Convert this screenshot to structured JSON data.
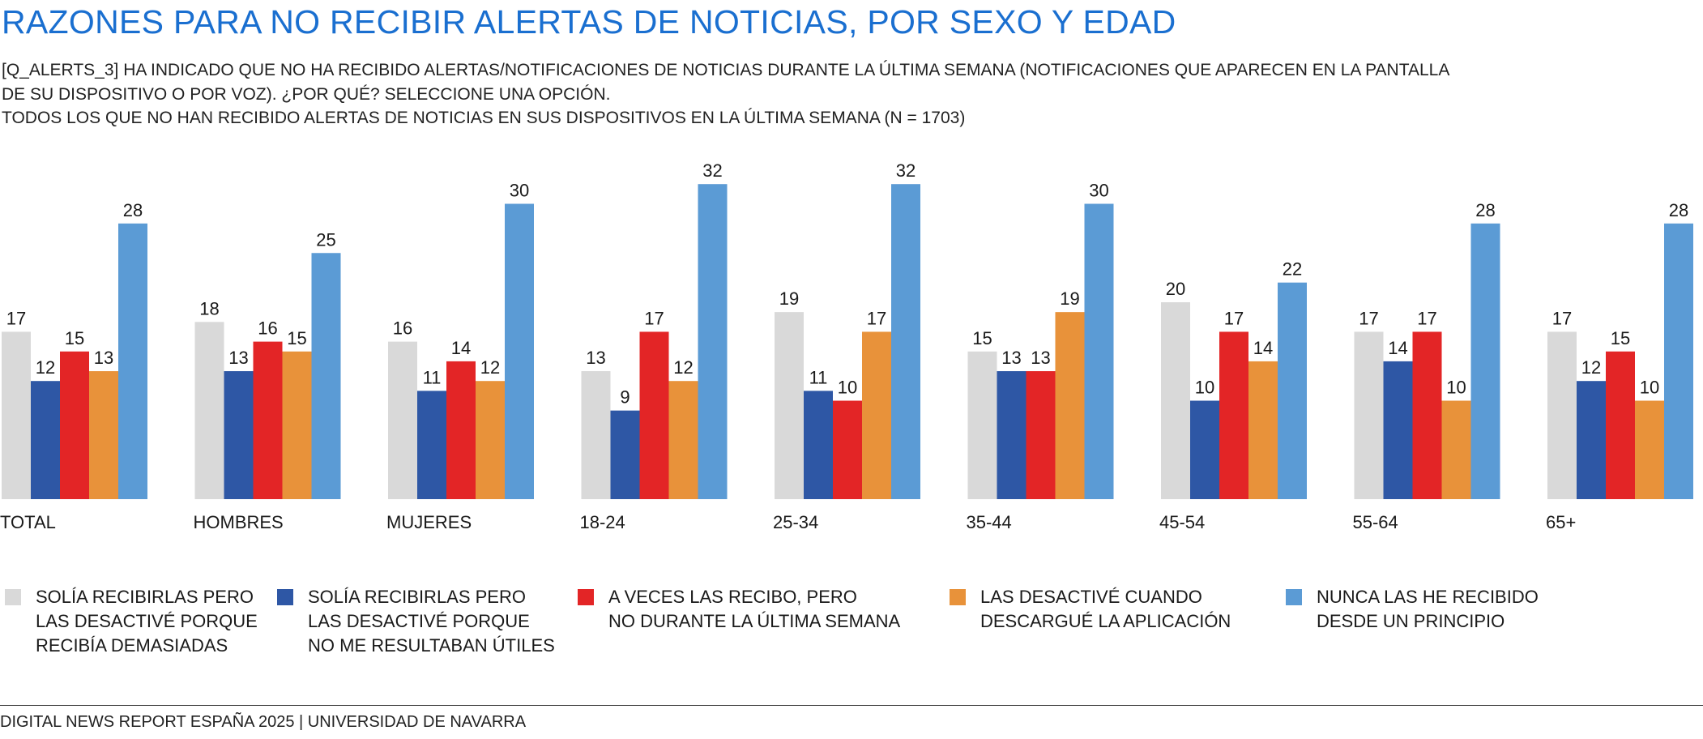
{
  "header": {
    "title": "RAZONES PARA NO RECIBIR ALERTAS DE NOTICIAS, POR SEXO Y EDAD",
    "question_line1": "[Q_ALERTS_3] HA INDICADO QUE NO HA RECIBIDO ALERTAS/NOTIFICACIONES DE NOTICIAS DURANTE LA ÚLTIMA SEMANA (NOTIFICACIONES QUE APARECEN EN LA PANTALLA",
    "question_line2": "DE SU DISPOSITIVO O POR VOZ). ¿POR QUÉ? SELECCIONE UNA OPCIÓN.",
    "base_line": "TODOS LOS QUE NO HAN RECIBIDO ALERTAS DE NOTICIAS EN SUS DISPOSITIVOS EN LA ÚLTIMA SEMANA (N = 1703)"
  },
  "chart_data": {
    "type": "bar",
    "categories": [
      "TOTAL",
      "HOMBRES",
      "MUJERES",
      "18-24",
      "25-34",
      "35-44",
      "45-54",
      "55-64",
      "65+"
    ],
    "series": [
      {
        "name": "SOLÍA RECIBIRLAS PERO\nLAS DESACTIVÉ PORQUE\nRECIBÍA DEMASIADAS",
        "color": "#d9d9d9",
        "values": [
          17,
          18,
          16,
          13,
          19,
          15,
          20,
          17,
          17
        ]
      },
      {
        "name": "SOLÍA RECIBIRLAS PERO\nLAS DESACTIVÉ PORQUE\nNO ME RESULTABAN ÚTILES",
        "color": "#2e57a5",
        "values": [
          12,
          13,
          11,
          9,
          11,
          13,
          10,
          14,
          12
        ]
      },
      {
        "name": "A VECES LAS RECIBO, PERO\nNO DURANTE LA ÚLTIMA SEMANA",
        "color": "#e32526",
        "values": [
          15,
          16,
          14,
          17,
          10,
          13,
          17,
          17,
          15
        ]
      },
      {
        "name": "LAS DESACTIVÉ CUANDO\nDESCARGUÉ LA APLICACIÓN",
        "color": "#e8923a",
        "values": [
          13,
          15,
          12,
          12,
          17,
          19,
          14,
          10,
          10
        ]
      },
      {
        "name": "NUNCA LAS HE RECIBIDO\nDESDE UN PRINCIPIO",
        "color": "#5b9bd5",
        "values": [
          28,
          25,
          30,
          32,
          32,
          30,
          22,
          28,
          28
        ]
      }
    ],
    "ylim": [
      0,
      34
    ],
    "grid": false,
    "legend_position": "bottom"
  },
  "footer": {
    "source": "DIGITAL NEWS REPORT ESPAÑA 2025 | UNIVERSIDAD DE NAVARRA"
  }
}
